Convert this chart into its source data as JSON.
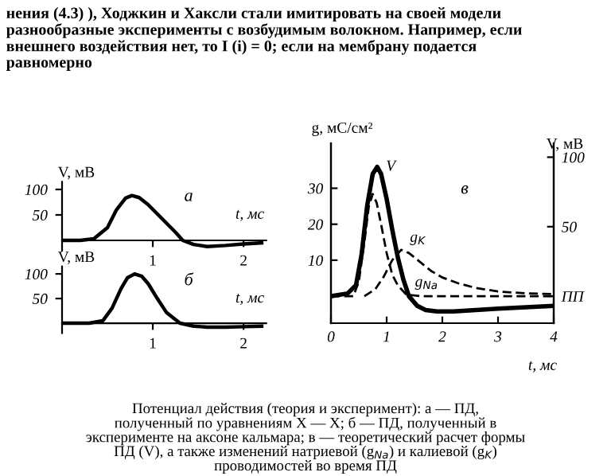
{
  "chart_data": [
    {
      "type": "line",
      "title": "а",
      "xlabel": "t, мс",
      "ylabel": "V, мВ",
      "xlim": [
        0,
        2.25
      ],
      "ylim": [
        -20,
        115
      ],
      "xticks": [
        1,
        2
      ],
      "yticks": [
        50,
        100
      ],
      "line_style": "solid",
      "color": "#000000",
      "x": [
        0,
        0.2,
        0.35,
        0.5,
        0.6,
        0.7,
        0.77,
        0.85,
        0.95,
        1.05,
        1.15,
        1.25,
        1.33,
        1.45,
        1.6,
        1.8,
        2.0,
        2.2
      ],
      "values": [
        0,
        0,
        3,
        25,
        60,
        83,
        88,
        84,
        70,
        52,
        34,
        16,
        0,
        -8,
        -12,
        -10,
        -7,
        -5
      ],
      "annotations": [
        "нения (4.3) ), Ходжкин и Хаксли стали имитировать на своей модели\nразнообразные эксперименты с возбудимым волокном. Например, если\nвнешнего воздействия нет, то I (i) = 0; если на мембрану подается\nравномерно"
      ]
    },
    {
      "type": "line",
      "title": "б",
      "ylabel": "V, мВ",
      "xlabel": "t, мс",
      "xlim": [
        0,
        2.25
      ],
      "ylim": [
        -20,
        115
      ],
      "xticks": [
        1,
        2
      ],
      "yticks": [
        50,
        100
      ],
      "line_style": "solid",
      "color": "#000000",
      "x": [
        0,
        0.3,
        0.45,
        0.55,
        0.65,
        0.72,
        0.8,
        0.88,
        0.95,
        1.05,
        1.15,
        1.3,
        1.45,
        1.6,
        1.8,
        2.0,
        2.2
      ],
      "values": [
        0,
        0,
        5,
        30,
        70,
        92,
        100,
        95,
        80,
        50,
        22,
        0,
        -6,
        -8,
        -8,
        -7,
        -6
      ]
    },
    {
      "type": "line",
      "title": "в",
      "xlabel": "t, мс",
      "ylabel": "g, мС/см²",
      "y2label": "V, мВ",
      "xlim": [
        0,
        4
      ],
      "ylim": [
        -7.5,
        42.5
      ],
      "y2lim": [
        -19.4,
        110
      ],
      "xticks": [
        0,
        1,
        2,
        3,
        4
      ],
      "yticks": [
        10,
        20,
        30
      ],
      "y2ticks": [
        {
          "value": 0,
          "label": "ПП"
        },
        50,
        100
      ],
      "series": [
        {
          "name": "V",
          "axis": "y2",
          "color": "#000000",
          "line_style": "solid",
          "x": [
            0,
            0.3,
            0.45,
            0.55,
            0.65,
            0.75,
            0.83,
            0.9,
            1.0,
            1.1,
            1.2,
            1.3,
            1.4,
            1.55,
            1.7,
            1.9,
            2.2,
            2.6,
            3.0,
            3.5,
            4.0
          ],
          "values": [
            0,
            2,
            8,
            30,
            65,
            88,
            93,
            88,
            70,
            48,
            28,
            12,
            0,
            -7,
            -10,
            -11,
            -11,
            -10,
            -9,
            -8,
            -7
          ]
        },
        {
          "name": "g$_{Na}$",
          "color": "#000000",
          "line_style": "dashed",
          "x": [
            0,
            0.4,
            0.5,
            0.6,
            0.68,
            0.75,
            0.82,
            0.9,
            1.0,
            1.1,
            1.2,
            1.35,
            1.6,
            2.0,
            3.0,
            4.0
          ],
          "values": [
            0,
            0,
            4,
            15,
            25,
            28.4,
            26,
            20,
            12,
            6,
            3,
            0.5,
            0,
            0,
            0,
            0
          ]
        },
        {
          "name": "g$_{K}$",
          "color": "#000000",
          "line_style": "dashed",
          "x": [
            0.6,
            0.8,
            0.95,
            1.1,
            1.26,
            1.4,
            1.6,
            1.8,
            2.0,
            2.3,
            2.6,
            3.0,
            3.5,
            4.0
          ],
          "values": [
            0,
            2,
            5.5,
            10,
            12.9,
            12,
            9.5,
            7,
            5.2,
            3.5,
            2.3,
            1.3,
            0.8,
            0.6
          ]
        }
      ],
      "annotations": [
        "Потенциал действия (теория и эксперимент): а — ПД,\nполученный по уравнениям Х — Х; б — ПД, полученный в\nэксперименте на аксоне кальмара; в — теоретический расчет формы\nПД (V), а также изменений натриевой (g$_{Na}$) и калиевой (g$_{K}$)\nпроводимостей во время ПД"
      ]
    }
  ]
}
